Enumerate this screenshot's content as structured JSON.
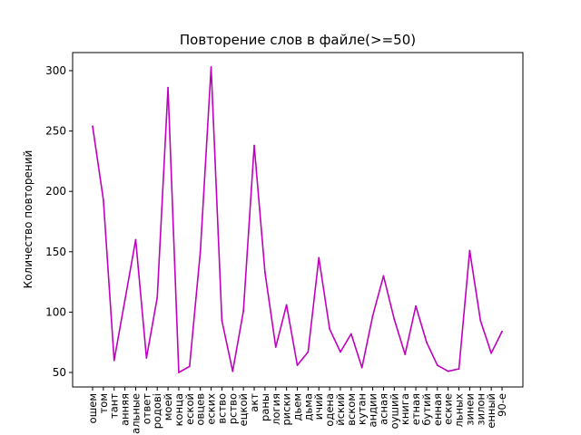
{
  "chart_data": {
    "type": "line",
    "title": "Повторение слов в файле(>=50)",
    "xlabel": "",
    "ylabel": "Количество повторений",
    "ylim": [
      38,
      315
    ],
    "yticks": [
      50,
      100,
      150,
      200,
      250,
      300
    ],
    "grid": false,
    "legend": "none",
    "line_color": "#bf00bf",
    "categories": [
      "ошем",
      "том",
      "тант",
      "анняя",
      "альные",
      "ответ",
      "родові",
      "моей",
      "конца",
      "еской",
      "овцев",
      "еских",
      "вство",
      "рство",
      "ецкой",
      "акт",
      "раны",
      "логия",
      "риски",
      "дьем",
      "дьма",
      "ичий",
      "одена",
      "йский",
      "вском",
      "кутан",
      "андии",
      "асная",
      "оуший",
      "книга",
      "етная",
      "бутий",
      "енная",
      "еские",
      "льных",
      "зинеи",
      "зилон",
      "енный",
      "90-е"
    ],
    "series": [
      {
        "values": [
          254,
          193,
          60,
          110,
          160,
          62,
          112,
          286,
          50,
          55,
          150,
          303,
          93,
          51,
          101,
          238,
          133,
          71,
          106,
          56,
          67,
          145,
          86,
          67,
          82,
          54,
          97,
          130,
          94,
          65,
          105,
          75,
          56,
          51,
          53,
          151,
          93,
          66,
          84
        ]
      }
    ]
  }
}
